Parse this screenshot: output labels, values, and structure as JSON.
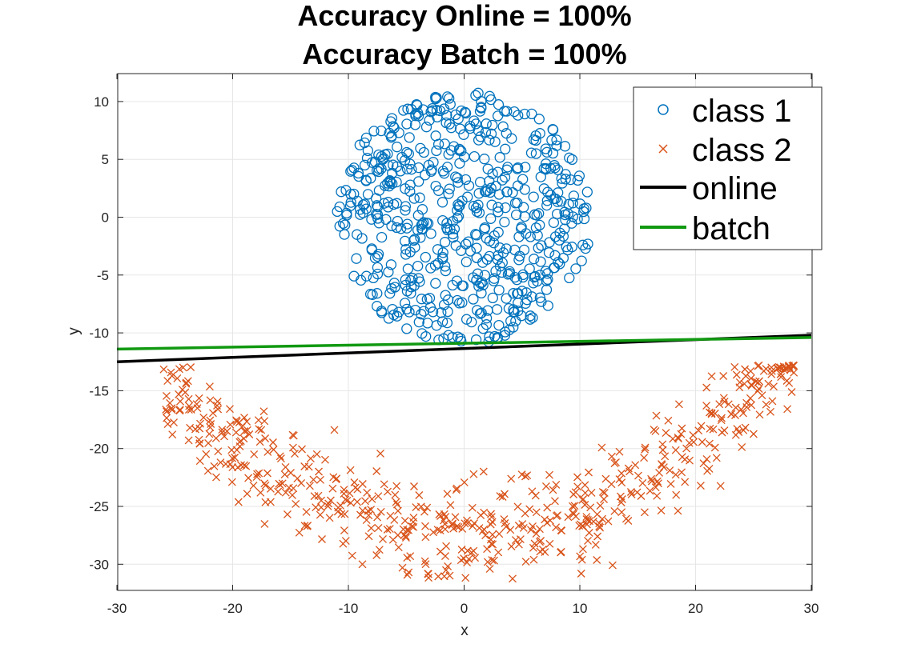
{
  "chart_data": {
    "type": "scatter",
    "title": [
      "Accuracy Online = 100%",
      "Accuracy Batch = 100%"
    ],
    "xlabel": "x",
    "ylabel": "y",
    "xlim": [
      -30,
      30
    ],
    "ylim": [
      -32,
      12
    ],
    "xticks": [
      -30,
      -20,
      -10,
      0,
      10,
      20,
      30
    ],
    "yticks": [
      10,
      5,
      0,
      -5,
      -10,
      -15,
      -20,
      -25,
      -30
    ],
    "grid": true,
    "legend_position": "top-right",
    "legend": [
      "class 1",
      "class 2",
      "online",
      "batch"
    ],
    "colors": {
      "class1": "#0072bd",
      "class2": "#d95319",
      "online": "#000000",
      "batch": "#119911"
    },
    "class1_description": {
      "shape": "disc",
      "center": [
        0,
        0
      ],
      "radius": 11,
      "marker": "circle",
      "count": 600
    },
    "class2_description": {
      "shape": "crescent band",
      "curve": "y = -27.5 + 0.02 * x^2 + noise",
      "x_range": [
        -26,
        28.5
      ],
      "marker": "x",
      "count": 600
    },
    "series": [
      {
        "name": "online",
        "type": "line",
        "x": [
          -30,
          30
        ],
        "y": [
          -12.5,
          -10.2
        ]
      },
      {
        "name": "batch",
        "type": "line",
        "x": [
          -30,
          30
        ],
        "y": [
          -11.4,
          -10.4
        ]
      }
    ]
  }
}
